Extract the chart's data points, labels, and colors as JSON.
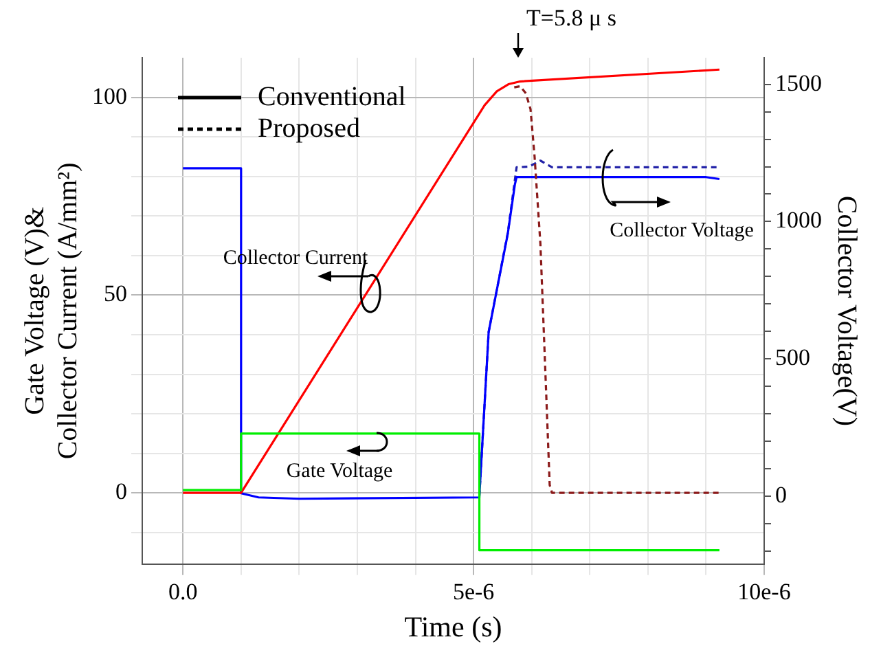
{
  "chart_data": {
    "type": "line",
    "xlabel": "Time (s)",
    "ylabel": "Gate Voltage (V)&\nCollector Current (A/mm²)",
    "y2label": "Collector Voltage(V)",
    "xlim": [
      -7e-07,
      1e-05
    ],
    "xticks": [
      {
        "value": 0,
        "label": "0.0"
      },
      {
        "value": 1e-06,
        "label": null
      },
      {
        "value": 2e-06,
        "label": null
      },
      {
        "value": 3e-06,
        "label": null
      },
      {
        "value": 4e-06,
        "label": null
      },
      {
        "value": 5e-06,
        "label": "5e-6"
      },
      {
        "value": 6e-06,
        "label": null
      },
      {
        "value": 7e-06,
        "label": null
      },
      {
        "value": 8e-06,
        "label": null
      },
      {
        "value": 9e-06,
        "label": null
      },
      {
        "value": 1e-05,
        "label": "10e-6"
      }
    ],
    "ylim": [
      -18,
      110
    ],
    "yticks": [
      {
        "value": -10,
        "label": null
      },
      {
        "value": 0,
        "label": "0"
      },
      {
        "value": 10,
        "label": null
      },
      {
        "value": 20,
        "label": null
      },
      {
        "value": 30,
        "label": null
      },
      {
        "value": 40,
        "label": null
      },
      {
        "value": 50,
        "label": "50"
      },
      {
        "value": 60,
        "label": null
      },
      {
        "value": 70,
        "label": null
      },
      {
        "value": 80,
        "label": null
      },
      {
        "value": 90,
        "label": null
      },
      {
        "value": 100,
        "label": "100"
      }
    ],
    "y2lim": [
      -248,
      1597
    ],
    "y2ticks": [
      {
        "value": -200,
        "label": null
      },
      {
        "value": -100,
        "label": null
      },
      0,
      {
        "value": 100,
        "label": null
      },
      {
        "value": 200,
        "label": null
      },
      {
        "value": 300,
        "label": null
      },
      {
        "value": 400,
        "label": null
      },
      500,
      {
        "value": 600,
        "label": null
      },
      {
        "value": 700,
        "label": null
      },
      {
        "value": 800,
        "label": null
      },
      {
        "value": 900,
        "label": null
      },
      1000,
      {
        "value": 1100,
        "label": null
      },
      {
        "value": 1200,
        "label": null
      },
      {
        "value": 1300,
        "label": null
      },
      {
        "value": 1400,
        "label": null
      },
      1500
    ],
    "grid": true,
    "marker": "none",
    "series": [
      {
        "color": "#00ee00",
        "line_style": "solid",
        "x": [
          0,
          1e-06,
          1e-06,
          5.1e-06,
          5.1e-06,
          9.23e-06
        ],
        "values": [
          0.7,
          0.7,
          15,
          15,
          -14.5,
          -14.5
        ]
      },
      {
        "color": "#ff0000",
        "line_style": "solid",
        "x": [
          0,
          1e-06,
          5.19e-06,
          5.4e-06,
          5.6e-06,
          5.8e-06,
          9.23e-06
        ],
        "values": [
          0,
          0,
          98,
          101.5,
          103.3,
          104,
          107
        ]
      },
      {
        "color": "#8b1a1a",
        "line_style": "dashed",
        "x": [
          5.7e-06,
          5.8e-06,
          5.9e-06,
          5.98e-06,
          6.05e-06,
          6.15e-06,
          6.25e-06,
          6.31e-06,
          6.35e-06,
          9.23e-06
        ],
        "values": [
          102.5,
          102.8,
          101,
          97,
          85,
          63,
          25,
          2,
          0,
          0
        ]
      },
      {
        "color": "#0000ff",
        "line_style": "solid",
        "axis": "y2",
        "x": [
          0,
          1e-06,
          1e-06,
          1.3e-06,
          2e-06,
          5.1e-06,
          5.1e-06,
          5.26e-06,
          5.59e-06,
          5.71e-06,
          5.74e-06,
          9e-06,
          9.23e-06
        ],
        "values": [
          1194,
          1194,
          10,
          -5,
          -10,
          -5,
          0,
          598,
          957,
          1134,
          1162,
          1162,
          1155
        ]
      },
      {
        "color": "#2323a8",
        "line_style": "dashed",
        "axis": "y2",
        "x": [
          5.1e-06,
          5.26e-06,
          5.59e-06,
          5.71e-06,
          5.74e-06,
          5.95e-06,
          6.15e-06,
          6.35e-06,
          9.23e-06
        ],
        "values": [
          0,
          598,
          960,
          1150,
          1198,
          1200,
          1222,
          1198,
          1198
        ]
      }
    ],
    "annotations": [
      "T=5.8 μ s",
      "Collector Current",
      "Gate Voltage",
      "Collector Voltage",
      "Conventional",
      "Proposed"
    ]
  }
}
